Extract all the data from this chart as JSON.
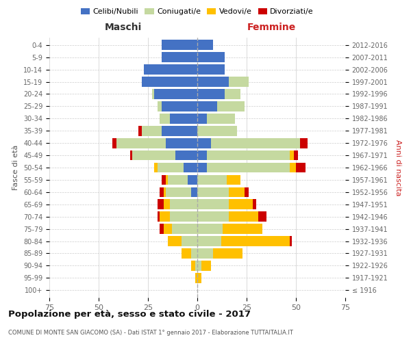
{
  "age_groups": [
    "100+",
    "95-99",
    "90-94",
    "85-89",
    "80-84",
    "75-79",
    "70-74",
    "65-69",
    "60-64",
    "55-59",
    "50-54",
    "45-49",
    "40-44",
    "35-39",
    "30-34",
    "25-29",
    "20-24",
    "15-19",
    "10-14",
    "5-9",
    "0-4"
  ],
  "birth_years": [
    "≤ 1916",
    "1917-1921",
    "1922-1926",
    "1927-1931",
    "1932-1936",
    "1937-1941",
    "1942-1946",
    "1947-1951",
    "1952-1956",
    "1957-1961",
    "1962-1966",
    "1967-1971",
    "1972-1976",
    "1977-1981",
    "1982-1986",
    "1987-1991",
    "1992-1996",
    "1997-2001",
    "2002-2006",
    "2007-2011",
    "2012-2016"
  ],
  "maschi_celibi": [
    0,
    0,
    0,
    0,
    0,
    0,
    0,
    0,
    3,
    5,
    7,
    11,
    16,
    18,
    14,
    18,
    22,
    28,
    27,
    18,
    18
  ],
  "maschi_coniugati": [
    0,
    0,
    1,
    3,
    8,
    13,
    14,
    14,
    13,
    10,
    13,
    22,
    25,
    10,
    5,
    2,
    1,
    0,
    0,
    0,
    0
  ],
  "maschi_vedovi": [
    0,
    1,
    2,
    5,
    7,
    4,
    5,
    3,
    1,
    1,
    2,
    0,
    0,
    0,
    0,
    0,
    0,
    0,
    0,
    0,
    0
  ],
  "maschi_divorziati": [
    0,
    0,
    0,
    0,
    0,
    2,
    1,
    3,
    2,
    2,
    0,
    1,
    2,
    2,
    0,
    0,
    0,
    0,
    0,
    0,
    0
  ],
  "femmine_celibi": [
    0,
    0,
    0,
    0,
    0,
    0,
    0,
    0,
    0,
    0,
    5,
    5,
    7,
    0,
    5,
    10,
    14,
    16,
    14,
    14,
    8
  ],
  "femmine_coniugati": [
    0,
    0,
    2,
    8,
    12,
    13,
    16,
    16,
    16,
    15,
    42,
    42,
    45,
    20,
    14,
    14,
    8,
    10,
    0,
    0,
    0
  ],
  "femmine_vedovi": [
    0,
    2,
    5,
    15,
    35,
    20,
    15,
    12,
    8,
    7,
    3,
    2,
    0,
    0,
    0,
    0,
    0,
    0,
    0,
    0,
    0
  ],
  "femmine_divorziati": [
    0,
    0,
    0,
    0,
    1,
    0,
    4,
    2,
    2,
    0,
    5,
    2,
    4,
    0,
    0,
    0,
    0,
    0,
    0,
    0,
    0
  ],
  "colors": {
    "celibi": "#4472c4",
    "coniugati": "#c5d9a0",
    "vedovi": "#ffc000",
    "divorziati": "#cc0000"
  },
  "title": "Popolazione per età, sesso e stato civile - 2017",
  "subtitle": "COMUNE DI MONTE SAN GIACOMO (SA) - Dati ISTAT 1° gennaio 2017 - Elaborazione TUTTAITALIA.IT",
  "xlabel_left": "Maschi",
  "xlabel_right": "Femmine",
  "ylabel_left": "Fasce di età",
  "ylabel_right": "Anni di nascita",
  "xlim": 75,
  "bg_color": "#ffffff",
  "grid_color": "#cccccc",
  "legend_labels": [
    "Celibi/Nubili",
    "Coniugati/e",
    "Vedovi/e",
    "Divorziati/e"
  ]
}
